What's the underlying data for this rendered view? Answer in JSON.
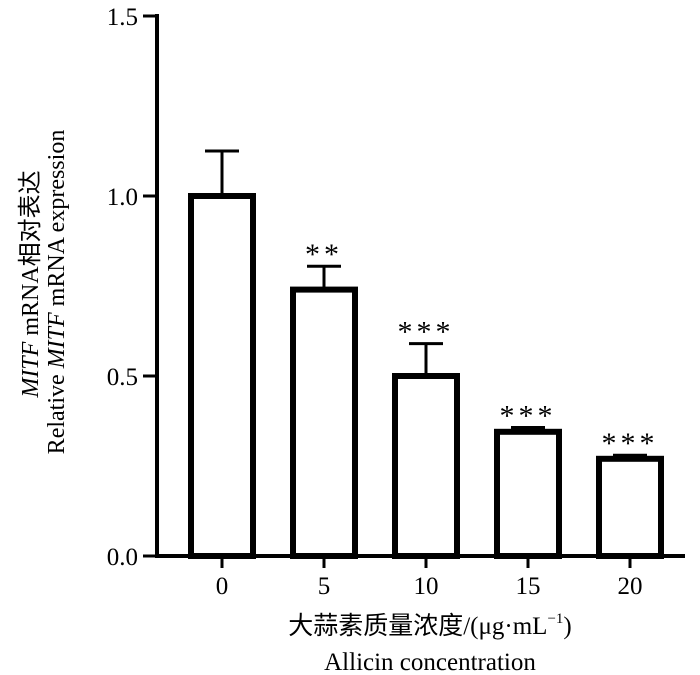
{
  "chart_data": {
    "type": "bar",
    "categories": [
      "0",
      "5",
      "10",
      "15",
      "20"
    ],
    "values": [
      1.0,
      0.74,
      0.5,
      0.345,
      0.27
    ],
    "error_upper": [
      0.125,
      0.065,
      0.09,
      0.012,
      0.01
    ],
    "significance": [
      "",
      "**",
      "***",
      "***",
      "***"
    ],
    "ylim": [
      0,
      1.5
    ],
    "y_ticks": [
      "0.0",
      "0.5",
      "1.0",
      "1.5"
    ],
    "ylabel": {
      "line1_gene": "MITF",
      "line1_rest": " mRNA相对表达",
      "line2_start": "Relative ",
      "line2_gene": "MITF",
      "line2_end": " mRNA expression"
    },
    "xlabel": {
      "cn_text": "大蒜素质量浓度/(μg·mL",
      "cn_sup": "−1",
      "cn_close": ")",
      "en": "Allicin concentration"
    },
    "bar_fill": "#ffffff",
    "bar_stroke": "#000000",
    "grid": false,
    "legend": "none"
  }
}
